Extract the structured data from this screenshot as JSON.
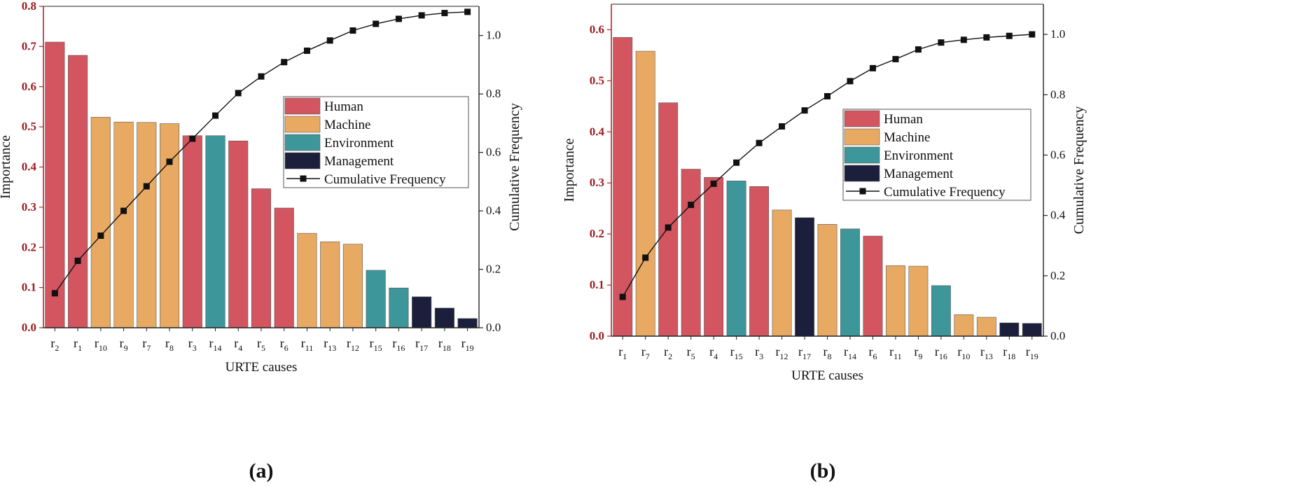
{
  "figure": {
    "colors": {
      "Human": "#d2555f",
      "Machine": "#e8aa63",
      "Environment": "#3d9699",
      "Management": "#1b1f3c",
      "left_tick_text": "#a01c22",
      "line": "#111111"
    }
  },
  "chart_data": [
    {
      "panel_label": "(a)",
      "type": "bar",
      "xlabel": "URTE causes",
      "ylabel": "Importance",
      "y2label": "Cumulative Frequency",
      "ylim": [
        0,
        0.8
      ],
      "y_ticks": [
        "0.0",
        "0.1",
        "0.2",
        "0.3",
        "0.4",
        "0.5",
        "0.6",
        "0.7",
        "0.8"
      ],
      "y2lim": [
        0,
        1.1
      ],
      "y2_ticks": [
        "0.0",
        "0.2",
        "0.4",
        "0.6",
        "0.8",
        "1.0"
      ],
      "categories": [
        {
          "base": "r",
          "sub": "2"
        },
        {
          "base": "r",
          "sub": "1"
        },
        {
          "base": "r",
          "sub": "10"
        },
        {
          "base": "r",
          "sub": "9"
        },
        {
          "base": "r",
          "sub": "7"
        },
        {
          "base": "r",
          "sub": "8"
        },
        {
          "base": "r",
          "sub": "3"
        },
        {
          "base": "r",
          "sub": "14"
        },
        {
          "base": "r",
          "sub": "4"
        },
        {
          "base": "r",
          "sub": "5"
        },
        {
          "base": "r",
          "sub": "6"
        },
        {
          "base": "r",
          "sub": "11"
        },
        {
          "base": "r",
          "sub": "13"
        },
        {
          "base": "r",
          "sub": "12"
        },
        {
          "base": "r",
          "sub": "15"
        },
        {
          "base": "r",
          "sub": "16"
        },
        {
          "base": "r",
          "sub": "17"
        },
        {
          "base": "r",
          "sub": "18"
        },
        {
          "base": "r",
          "sub": "19"
        }
      ],
      "values": [
        0.711,
        0.678,
        0.524,
        0.512,
        0.511,
        0.508,
        0.478,
        0.478,
        0.465,
        0.346,
        0.298,
        0.235,
        0.214,
        0.208,
        0.143,
        0.099,
        0.077,
        0.049,
        0.023
      ],
      "groups": [
        "Human",
        "Human",
        "Machine",
        "Machine",
        "Machine",
        "Machine",
        "Human",
        "Environment",
        "Human",
        "Human",
        "Human",
        "Machine",
        "Machine",
        "Machine",
        "Environment",
        "Environment",
        "Management",
        "Management",
        "Management"
      ],
      "cumulative": [
        0.118,
        0.229,
        0.315,
        0.4,
        0.484,
        0.568,
        0.647,
        0.726,
        0.803,
        0.86,
        0.909,
        0.948,
        0.983,
        1.017,
        1.04,
        1.057,
        1.069,
        1.077,
        1.081
      ],
      "legend_position": "right-middle",
      "legend": [
        {
          "label": "Human",
          "group": "Human"
        },
        {
          "label": "Machine",
          "group": "Machine"
        },
        {
          "label": "Environment",
          "group": "Environment"
        },
        {
          "label": "Management",
          "group": "Management"
        },
        {
          "label": "Cumulative Frequency",
          "group": "line"
        }
      ]
    },
    {
      "panel_label": "(b)",
      "type": "bar",
      "xlabel": "URTE causes",
      "ylabel": "Importance",
      "y2label": "Cumulative Frequency",
      "ylim": [
        0,
        0.65
      ],
      "y_ticks": [
        "0.0",
        "0.1",
        "0.2",
        "0.3",
        "0.4",
        "0.5",
        "0.6"
      ],
      "y2lim": [
        0,
        1.1
      ],
      "y2_ticks": [
        "0.0",
        "0.2",
        "0.4",
        "0.6",
        "0.8",
        "1.0"
      ],
      "categories": [
        {
          "base": "r",
          "sub": "1"
        },
        {
          "base": "r",
          "sub": "7"
        },
        {
          "base": "r",
          "sub": "2"
        },
        {
          "base": "r",
          "sub": "5"
        },
        {
          "base": "r",
          "sub": "4"
        },
        {
          "base": "r",
          "sub": "15"
        },
        {
          "base": "r",
          "sub": "3"
        },
        {
          "base": "r",
          "sub": "12"
        },
        {
          "base": "r",
          "sub": "17"
        },
        {
          "base": "r",
          "sub": "8"
        },
        {
          "base": "r",
          "sub": "14"
        },
        {
          "base": "r",
          "sub": "6"
        },
        {
          "base": "r",
          "sub": "11"
        },
        {
          "base": "r",
          "sub": "9"
        },
        {
          "base": "r",
          "sub": "16"
        },
        {
          "base": "r",
          "sub": "10"
        },
        {
          "base": "r",
          "sub": "13"
        },
        {
          "base": "r",
          "sub": "18"
        },
        {
          "base": "r",
          "sub": "19"
        }
      ],
      "values": [
        0.585,
        0.558,
        0.457,
        0.327,
        0.311,
        0.304,
        0.293,
        0.247,
        0.232,
        0.219,
        0.21,
        0.196,
        0.138,
        0.137,
        0.099,
        0.042,
        0.037,
        0.026,
        0.025
      ],
      "groups": [
        "Human",
        "Machine",
        "Human",
        "Human",
        "Human",
        "Environment",
        "Human",
        "Machine",
        "Management",
        "Machine",
        "Environment",
        "Human",
        "Machine",
        "Machine",
        "Environment",
        "Machine",
        "Machine",
        "Management",
        "Management"
      ],
      "cumulative": [
        0.13,
        0.26,
        0.36,
        0.435,
        0.505,
        0.575,
        0.64,
        0.695,
        0.748,
        0.795,
        0.845,
        0.888,
        0.918,
        0.95,
        0.973,
        0.982,
        0.99,
        0.995,
        1.0
      ],
      "legend_position": "right-middle",
      "legend": [
        {
          "label": "Human",
          "group": "Human"
        },
        {
          "label": "Machine",
          "group": "Machine"
        },
        {
          "label": "Environment",
          "group": "Environment"
        },
        {
          "label": "Management",
          "group": "Management"
        },
        {
          "label": "Cumulative Frequency",
          "group": "line"
        }
      ]
    }
  ]
}
